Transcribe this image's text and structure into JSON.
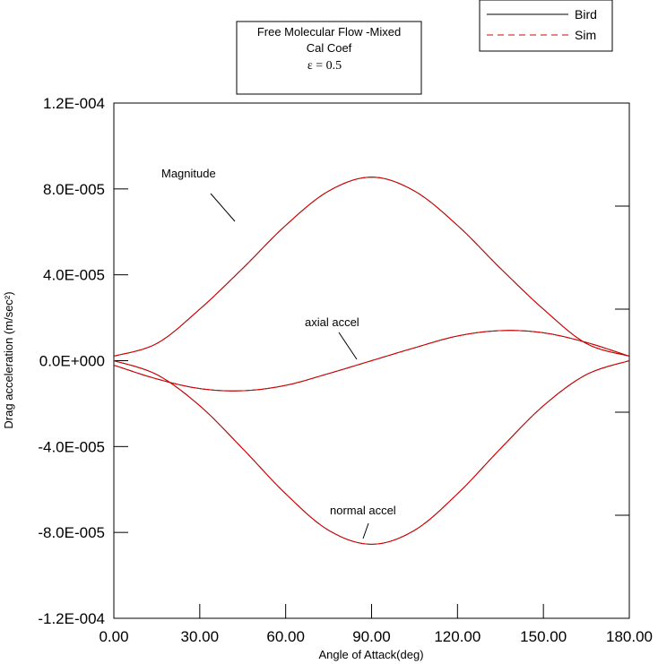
{
  "chart_data": {
    "type": "line",
    "title_lines": [
      "Free Molecular Flow -Mixed",
      "Cal Coef",
      "ε = 0.5"
    ],
    "xlabel": "Angle of Attack(deg)",
    "ylabel": "Drag acceleration (m/sec²)",
    "xlim": [
      0,
      180
    ],
    "ylim": [
      -0.00012,
      0.00012
    ],
    "x_ticks": [
      0,
      30,
      60,
      90,
      120,
      150,
      180
    ],
    "x_tick_labels": [
      "0.00",
      "30.00",
      "60.00",
      "90.00",
      "120.00",
      "150.00",
      "180.00"
    ],
    "y_ticks": [
      -0.00012,
      -8e-05,
      -4e-05,
      0,
      4e-05,
      8e-05,
      0.00012
    ],
    "y_tick_labels": [
      "-1.2E-004",
      "-8.0E-005",
      "-4.0E-005",
      "0.0E+000",
      "4.0E-005",
      "8.0E-005",
      "1.2E-004"
    ],
    "grid": false,
    "legend_position": "top-right",
    "legend": [
      {
        "name": "Bird",
        "color": "#000000",
        "style": "solid"
      },
      {
        "name": "Sim",
        "color": "#e00000",
        "style": "dashed"
      }
    ],
    "x": [
      0,
      15,
      30,
      45,
      60,
      75,
      90,
      105,
      120,
      135,
      150,
      165,
      180
    ],
    "series": [
      {
        "curve": "magnitude",
        "values": [
          2.1e-06,
          8e-06,
          2.4e-05,
          4.3e-05,
          6.3e-05,
          7.9e-05,
          8.55e-05,
          7.9e-05,
          6.3e-05,
          4.3e-05,
          2.4e-05,
          8e-06,
          2.1e-06
        ]
      },
      {
        "curve": "axial",
        "values": [
          -2.1e-06,
          -8.5e-06,
          -1.3e-05,
          -1.4e-05,
          -1.15e-05,
          -6e-06,
          0,
          6e-06,
          1.15e-05,
          1.4e-05,
          1.3e-05,
          8.5e-06,
          2.1e-06
        ]
      },
      {
        "curve": "normal",
        "values": [
          0,
          -6.5e-06,
          -2.1e-05,
          -4.1e-05,
          -6.2e-05,
          -7.9e-05,
          -8.55e-05,
          -7.9e-05,
          -6.2e-05,
          -4.1e-05,
          -2.1e-05,
          -6.5e-06,
          0
        ]
      }
    ],
    "annotations": [
      {
        "text": "Magnitude"
      },
      {
        "text": "axial accel"
      },
      {
        "text": "normal accel"
      }
    ]
  }
}
